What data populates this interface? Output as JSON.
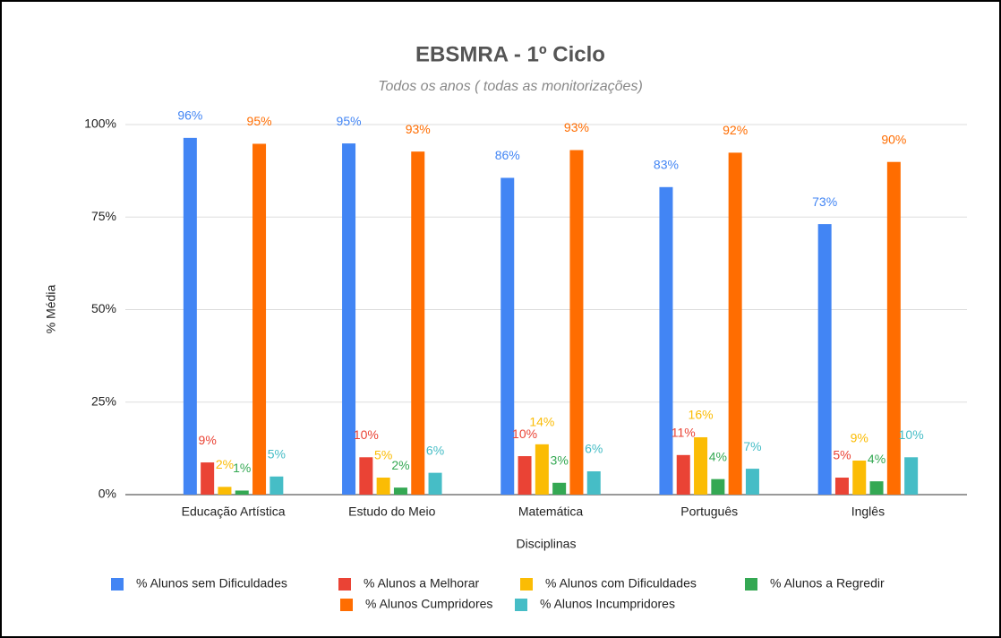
{
  "chart_data": {
    "type": "bar",
    "title": "EBSMRA - 1º Ciclo",
    "subtitle": "Todos os anos ( todas as monitorizações)",
    "x_label": "Disciplinas",
    "y_label": "% Média",
    "categories": [
      "Educação Artística",
      "Estudo do Meio",
      "Matemática",
      "Português",
      "Inglês"
    ],
    "series": [
      {
        "name": "% Alunos sem Dificuldades",
        "color": "#4285f4",
        "values": [
          96.4,
          94.9,
          85.6,
          83.1,
          73.1
        ],
        "value_labels": [
          "96%",
          "95%",
          "86%",
          "83%",
          "73%"
        ]
      },
      {
        "name": "% Alunos a Melhorar",
        "color": "#ea4335",
        "values": [
          8.7,
          10.1,
          10.4,
          10.7,
          4.6
        ],
        "value_labels": [
          "9%",
          "10%",
          "10%",
          "11%",
          "5%"
        ]
      },
      {
        "name": "% Alunos com Dificuldades",
        "color": "#fbbc04",
        "values": [
          2.1,
          4.6,
          13.6,
          15.5,
          9.2
        ],
        "value_labels": [
          "2%",
          "5%",
          "14%",
          "16%",
          "9%"
        ]
      },
      {
        "name": "% Alunos a Regredir",
        "color": "#34a853",
        "values": [
          1.1,
          1.9,
          3.2,
          4.2,
          3.6
        ],
        "value_labels": [
          "1%",
          "2%",
          "3%",
          "4%",
          "4%"
        ]
      },
      {
        "name": "% Alunos Cumpridores",
        "color": "#ff6d01",
        "values": [
          94.8,
          92.7,
          93.1,
          92.4,
          89.9
        ],
        "value_labels": [
          "95%",
          "93%",
          "93%",
          "92%",
          "90%"
        ]
      },
      {
        "name": "% Alunos Incumpridores",
        "color": "#46bdc6",
        "values": [
          4.9,
          5.9,
          6.3,
          7.0,
          10.1
        ],
        "value_labels": [
          "5%",
          "6%",
          "6%",
          "7%",
          "10%"
        ]
      }
    ],
    "ylim": [
      0,
      100
    ],
    "yticks": [
      {
        "value": 0,
        "label": "0%"
      },
      {
        "value": 25,
        "label": "25%"
      },
      {
        "value": 50,
        "label": "50%"
      },
      {
        "value": 75,
        "label": "75%"
      },
      {
        "value": 100,
        "label": "100%"
      }
    ],
    "grid": true,
    "legend": "bottom"
  }
}
